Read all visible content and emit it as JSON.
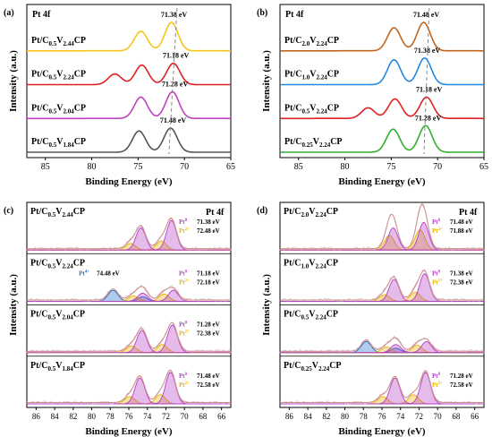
{
  "figure": {
    "chart_data": [
      {
        "id": "a",
        "type": "line",
        "panel_label": "(a)",
        "title_text": "Pt 4f",
        "xlabel": "Binding Energy (eV)",
        "ylabel": "Intensity (a.u.)",
        "xlim": [
          87,
          65
        ],
        "xticks": [
          85,
          80,
          75,
          70,
          65
        ],
        "grid": false,
        "legend": "curve labels on left",
        "dashed_reference_line": true,
        "series": [
          {
            "label": "Pt/C0.5V2.44CP",
            "label_main": "Pt/C",
            "sub1": "0.5",
            "mid": "V",
            "sub2": "2.44",
            "tail": "CP",
            "color": "#f5c518",
            "peaks": [
              {
                "center": 74.7,
                "height": 0.55
              },
              {
                "center": 71.4,
                "height": 0.8
              }
            ],
            "annotation": "71.38 eV",
            "annotation_peak_eV": 71.38
          },
          {
            "label": "Pt/C0.5V2.24CP",
            "label_main": "Pt/C",
            "sub1": "0.5",
            "mid": "V",
            "sub2": "2.24",
            "tail": "CP",
            "color": "#e02020",
            "peaks": [
              {
                "center": 77.5,
                "height": 0.3
              },
              {
                "center": 74.6,
                "height": 0.55
              },
              {
                "center": 71.2,
                "height": 0.6
              }
            ],
            "annotation": "71.18 eV",
            "annotation_peak_eV": 71.18
          },
          {
            "label": "Pt/C0.5V2.04CP",
            "label_main": "Pt/C",
            "sub1": "0.5",
            "mid": "V",
            "sub2": "2.04",
            "tail": "CP",
            "color": "#c040c0",
            "peaks": [
              {
                "center": 74.7,
                "height": 0.6
              },
              {
                "center": 71.3,
                "height": 0.75
              }
            ],
            "annotation": "71.28 eV",
            "annotation_peak_eV": 71.28
          },
          {
            "label": "Pt/C0.5V1.84CP",
            "label_main": "Pt/C",
            "sub1": "0.5",
            "mid": "V",
            "sub2": "1.84",
            "tail": "CP",
            "color": "#555555",
            "peaks": [
              {
                "center": 74.9,
                "height": 0.6
              },
              {
                "center": 71.5,
                "height": 0.68
              }
            ],
            "annotation": "71.48 eV",
            "annotation_peak_eV": 71.48
          }
        ]
      },
      {
        "id": "b",
        "type": "line",
        "panel_label": "(b)",
        "title_text": "Pt 4f",
        "xlabel": "Binding Energy (eV)",
        "ylabel": "Intensity (a.u.)",
        "xlim": [
          87,
          65
        ],
        "xticks": [
          85,
          80,
          75,
          70,
          65
        ],
        "grid": false,
        "legend": "curve labels on left",
        "dashed_reference_line": true,
        "series": [
          {
            "label": "Pt/C2.0V2.24CP",
            "label_main": "Pt/C",
            "sub1": "2.0",
            "mid": "V",
            "sub2": "2.24",
            "tail": "CP",
            "color": "#c0641e",
            "peaks": [
              {
                "center": 74.7,
                "height": 0.65
              },
              {
                "center": 71.5,
                "height": 0.8
              }
            ],
            "annotation": "71.48 eV",
            "annotation_peak_eV": 71.48
          },
          {
            "label": "Pt/C1.0V2.24CP",
            "label_main": "Pt/C",
            "sub1": "1.0",
            "mid": "V",
            "sub2": "2.24",
            "tail": "CP",
            "color": "#2288e0",
            "peaks": [
              {
                "center": 74.7,
                "height": 0.7
              },
              {
                "center": 71.4,
                "height": 0.75
              }
            ],
            "annotation": "71.38 eV",
            "annotation_peak_eV": 71.38
          },
          {
            "label": "Pt/C0.5V2.24CP",
            "label_main": "Pt/C",
            "sub1": "0.5",
            "mid": "V",
            "sub2": "2.24",
            "tail": "CP",
            "color": "#e02020",
            "peaks": [
              {
                "center": 77.5,
                "height": 0.3
              },
              {
                "center": 74.6,
                "height": 0.55
              },
              {
                "center": 71.2,
                "height": 0.6
              }
            ],
            "annotation": "71.18 eV",
            "annotation_peak_eV": 71.18
          },
          {
            "label": "Pt/C0.25V2.24CP",
            "label_main": "Pt/C",
            "sub1": "0.25",
            "mid": "V",
            "sub2": "2.24",
            "tail": "CP",
            "color": "#30b030",
            "peaks": [
              {
                "center": 74.8,
                "height": 0.65
              },
              {
                "center": 71.3,
                "height": 0.75
              }
            ],
            "annotation": "71.28 eV",
            "annotation_peak_eV": 71.28
          }
        ]
      },
      {
        "id": "c",
        "type": "area",
        "panel_label": "(c)",
        "title_text": "Pt 4f",
        "xlabel": "Binding Energy (eV)",
        "ylabel": "Intensity (a.u.)",
        "xlim": [
          87,
          65
        ],
        "xticks": [
          86,
          84,
          82,
          80,
          78,
          76,
          74,
          72,
          70,
          68,
          66
        ],
        "grid": false,
        "legend": "right of each stacked sub-panel",
        "rows": [
          {
            "label_main": "Pt/C",
            "sub1": "0.5",
            "mid": "V",
            "sub2": "2.44",
            "tail": "CP",
            "pt0": "71.38 eV",
            "pt2": "72.48 eV",
            "pt4": "",
            "pt0_peaks": [
              {
                "center": 71.4,
                "height": 0.8
              },
              {
                "center": 74.7,
                "height": 0.6
              }
            ],
            "pt2_peaks": [
              {
                "center": 72.5,
                "height": 0.25
              },
              {
                "center": 75.8,
                "height": 0.18
              }
            ],
            "pt4_peaks": []
          },
          {
            "label_main": "Pt/C",
            "sub1": "0.5",
            "mid": "V",
            "sub2": "2.24",
            "tail": "CP",
            "pt0": "71.18 eV",
            "pt2": "72.18 eV",
            "pt4": "74.48 eV",
            "pt0_peaks": [
              {
                "center": 71.2,
                "height": 0.3
              },
              {
                "center": 74.5,
                "height": 0.22
              }
            ],
            "pt2_peaks": [
              {
                "center": 72.2,
                "height": 0.2
              },
              {
                "center": 75.5,
                "height": 0.15
              }
            ],
            "pt4_peaks": [
              {
                "center": 74.5,
                "height": 0.12
              },
              {
                "center": 77.7,
                "height": 0.3
              }
            ]
          },
          {
            "label_main": "Pt/C",
            "sub1": "0.5",
            "mid": "V",
            "sub2": "2.04",
            "tail": "CP",
            "pt0": "71.28 eV",
            "pt2": "72.38 eV",
            "pt4": "",
            "pt0_peaks": [
              {
                "center": 71.3,
                "height": 0.75
              },
              {
                "center": 74.6,
                "height": 0.6
              }
            ],
            "pt2_peaks": [
              {
                "center": 72.4,
                "height": 0.22
              },
              {
                "center": 75.7,
                "height": 0.18
              }
            ],
            "pt4_peaks": []
          },
          {
            "label_main": "Pt/C",
            "sub1": "0.5",
            "mid": "V",
            "sub2": "1.84",
            "tail": "CP",
            "pt0": "71.48 eV",
            "pt2": "72.58 eV",
            "pt4": "",
            "pt0_peaks": [
              {
                "center": 71.5,
                "height": 0.85
              },
              {
                "center": 74.8,
                "height": 0.7
              }
            ],
            "pt2_peaks": [
              {
                "center": 72.6,
                "height": 0.25
              },
              {
                "center": 75.9,
                "height": 0.2
              }
            ],
            "pt4_peaks": []
          }
        ]
      },
      {
        "id": "d",
        "type": "area",
        "panel_label": "(d)",
        "title_text": "Pt 4f",
        "xlabel": "Binding Energy (eV)",
        "ylabel": "Intensity (a.u.)",
        "xlim": [
          87,
          65
        ],
        "xticks": [
          86,
          84,
          82,
          80,
          78,
          76,
          74,
          72,
          70,
          68,
          66
        ],
        "grid": false,
        "legend": "right of each stacked sub-panel",
        "rows": [
          {
            "label_main": "Pt/C",
            "sub1": "2.0",
            "mid": "V",
            "sub2": "2.24",
            "tail": "CP",
            "pt0": "71.48 eV",
            "pt2": "71.88 eV",
            "pt4": "",
            "pt0_peaks": [
              {
                "center": 71.5,
                "height": 0.75
              },
              {
                "center": 74.8,
                "height": 0.6
              }
            ],
            "pt2_peaks": [
              {
                "center": 71.9,
                "height": 0.55
              },
              {
                "center": 75.2,
                "height": 0.4
              }
            ],
            "pt4_peaks": []
          },
          {
            "label_main": "Pt/C",
            "sub1": "1.0",
            "mid": "V",
            "sub2": "2.24",
            "tail": "CP",
            "pt0": "71.38 eV",
            "pt2": "72.38 eV",
            "pt4": "",
            "pt0_peaks": [
              {
                "center": 71.4,
                "height": 0.75
              },
              {
                "center": 74.7,
                "height": 0.6
              }
            ],
            "pt2_peaks": [
              {
                "center": 72.4,
                "height": 0.25
              },
              {
                "center": 75.7,
                "height": 0.18
              }
            ],
            "pt4_peaks": []
          },
          {
            "label_main": "Pt/C",
            "sub1": "0.5",
            "mid": "V",
            "sub2": "2.24",
            "tail": "CP",
            "pt0": "",
            "pt2": "",
            "pt4": "",
            "pt0_peaks": [
              {
                "center": 71.2,
                "height": 0.3
              },
              {
                "center": 74.5,
                "height": 0.22
              }
            ],
            "pt2_peaks": [
              {
                "center": 72.2,
                "height": 0.2
              },
              {
                "center": 75.5,
                "height": 0.15
              }
            ],
            "pt4_peaks": [
              {
                "center": 74.5,
                "height": 0.12
              },
              {
                "center": 77.7,
                "height": 0.3
              }
            ]
          },
          {
            "label_main": "Pt/C",
            "sub1": "0.25",
            "mid": "V",
            "sub2": "2.24",
            "tail": "CP",
            "pt0": "71.28 eV",
            "pt2": "72.58 eV",
            "pt4": "",
            "pt0_peaks": [
              {
                "center": 71.3,
                "height": 0.85
              },
              {
                "center": 74.6,
                "height": 0.7
              }
            ],
            "pt2_peaks": [
              {
                "center": 72.6,
                "height": 0.25
              },
              {
                "center": 75.9,
                "height": 0.2
              }
            ],
            "pt4_peaks": []
          }
        ]
      }
    ],
    "species_labels": {
      "pt0": "Pt",
      "pt0_sup": "0",
      "pt2": "Pt",
      "pt2_sup": "2+",
      "pt4": "Pt",
      "pt4_sup": "4+"
    },
    "colors": {
      "pt0": "#b43cc8",
      "pt2": "#e6b400",
      "pt4": "#1e6ec8",
      "envelope": "#e08080",
      "raw": "#b0b0b0",
      "axis": "#000000"
    }
  }
}
